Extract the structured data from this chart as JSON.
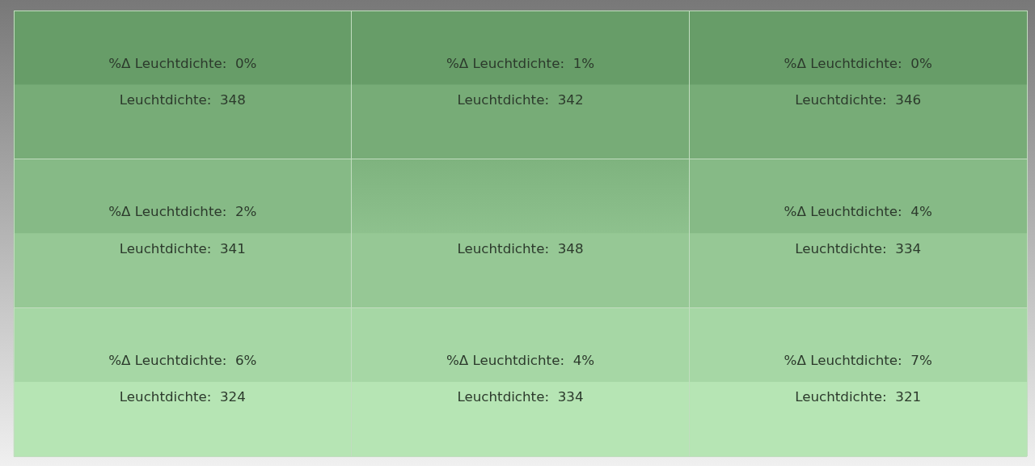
{
  "chart_data": {
    "type": "heatmap",
    "categories": [
      null,
      null,
      null
    ],
    "y_categories": [
      null,
      null,
      null,
      null,
      null,
      null
    ],
    "cells": [
      [
        0,
        1,
        0
      ],
      [
        348,
        342,
        346
      ],
      [
        2,
        null,
        4
      ],
      [
        341,
        348,
        334
      ],
      [
        6,
        4,
        7
      ],
      [
        324,
        334,
        321
      ]
    ],
    "cell_labels": [
      [
        "%Δ Leuchtdichte:  0%",
        "%Δ Leuchtdichte:  1%",
        "%Δ Leuchtdichte:  0%"
      ],
      [
        "Leuchtdichte:  348",
        "Leuchtdichte:  342",
        "Leuchtdichte:  346"
      ],
      [
        "%Δ Leuchtdichte:  2%",
        null,
        "%Δ Leuchtdichte:  4%"
      ],
      [
        "Leuchtdichte:  341",
        "Leuchtdichte:  348",
        "Leuchtdichte:  334"
      ],
      [
        "%Δ Leuchtdichte:  6%",
        "%Δ Leuchtdichte:  4%",
        "%Δ Leuchtdichte:  7%"
      ],
      [
        "Leuchtdichte:  324",
        "Leuchtdichte:  334",
        "Leuchtdichte:  321"
      ]
    ],
    "colors": [
      [
        "#679d68",
        "#679d68",
        "#679d68"
      ],
      [
        "#77ac77",
        "#77ac77",
        "#77ac77"
      ],
      [
        "#86ba86",
        null,
        "#86ba86"
      ],
      [
        "#96c895",
        "#96c895",
        "#96c895"
      ],
      [
        "#a6d7a5",
        "#a6d7a5",
        "#a6d7a5"
      ],
      [
        "#b6e5b4",
        "#b6e5b4",
        "#b6e5b4"
      ]
    ]
  }
}
